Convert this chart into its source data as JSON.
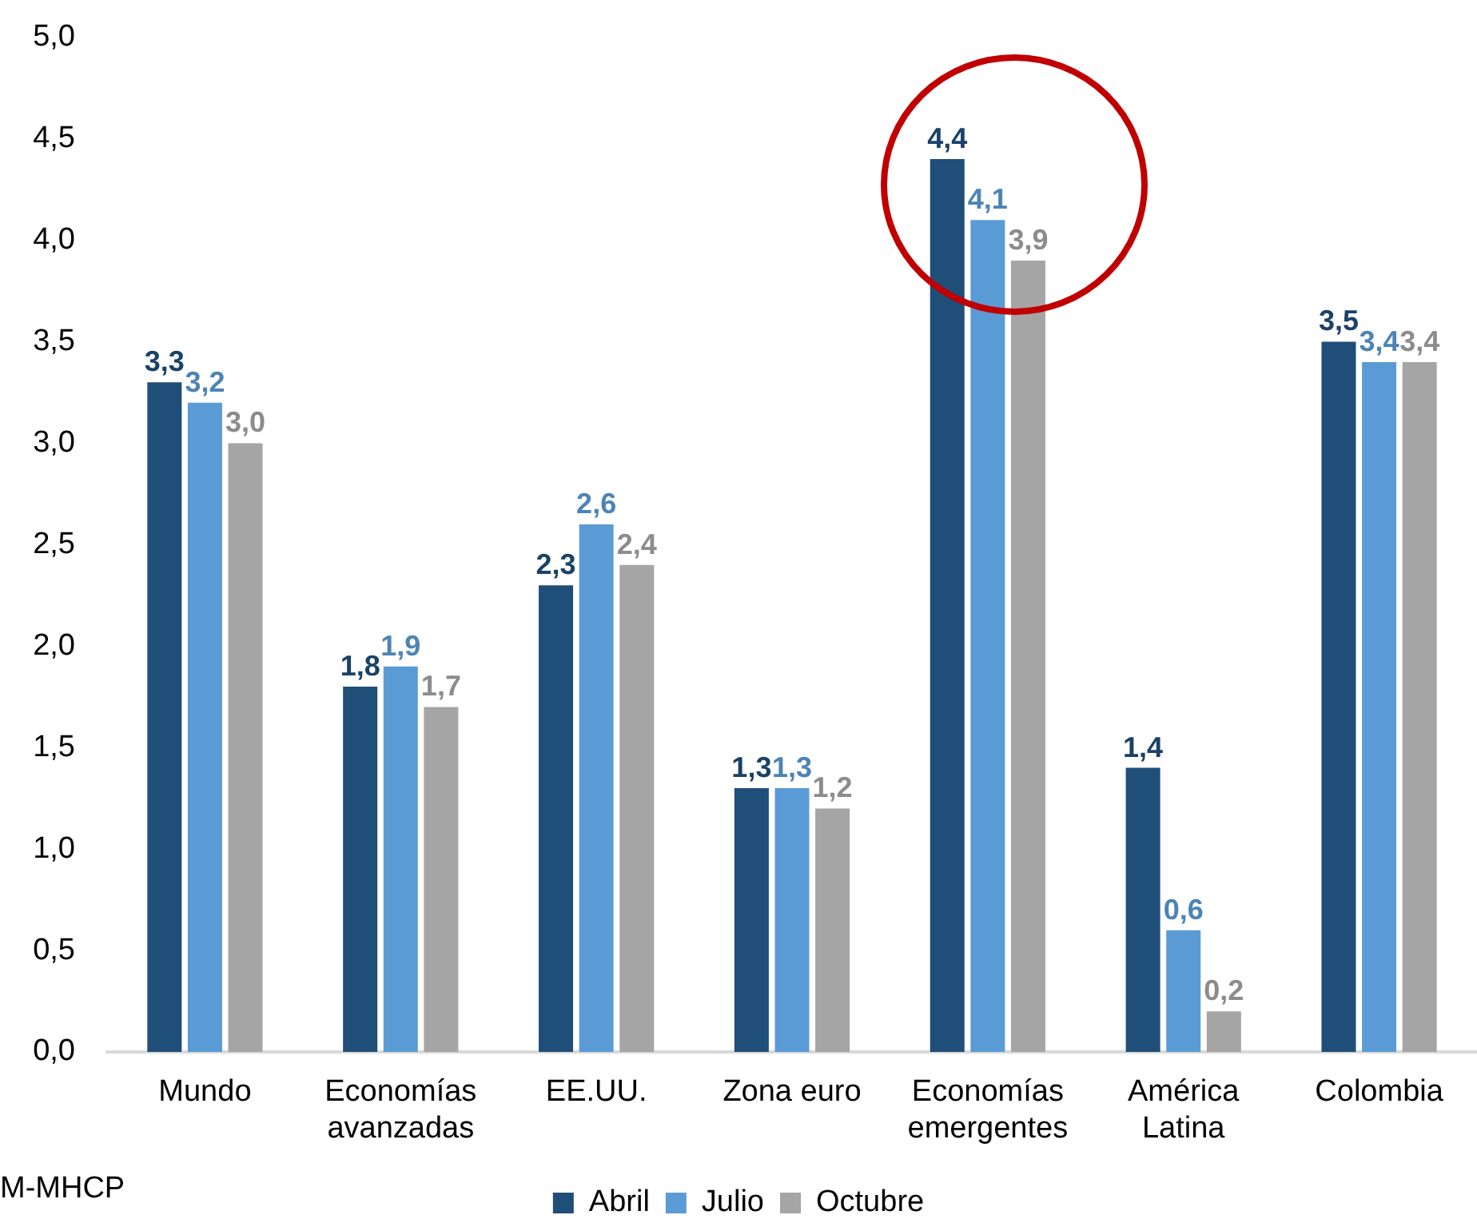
{
  "chart_data": {
    "type": "bar",
    "categories": [
      "Mundo",
      "Economías avanzadas",
      "EE.UU.",
      "Zona euro",
      "Economías emergentes",
      "América Latina",
      "Colombia"
    ],
    "series": [
      {
        "name": "Abril",
        "color": "#1f4e79",
        "values": [
          3.3,
          1.8,
          2.3,
          1.3,
          4.4,
          1.4,
          3.5
        ],
        "value_labels": [
          "3,3",
          "1,8",
          "2,3",
          "1,3",
          "4,4",
          "1,4",
          "3,5"
        ]
      },
      {
        "name": "Julio",
        "color": "#5b9bd5",
        "values": [
          3.2,
          1.9,
          2.6,
          1.3,
          4.1,
          0.6,
          3.4
        ],
        "value_labels": [
          "3,2",
          "1,9",
          "2,6",
          "1,3",
          "4,1",
          "0,6",
          "3,4"
        ]
      },
      {
        "name": "Octubre",
        "color": "#a5a5a5",
        "values": [
          3.0,
          1.7,
          2.4,
          1.2,
          3.9,
          0.2,
          3.4
        ],
        "value_labels": [
          "3,0",
          "1,7",
          "2,4",
          "1,2",
          "3,9",
          "0,2",
          "3,4"
        ]
      }
    ],
    "ylim": [
      0,
      5
    ],
    "yticks": [
      {
        "value": 0,
        "label": "0,0"
      },
      {
        "value": 0.5,
        "label": "0,5"
      },
      {
        "value": 1,
        "label": "1,0"
      },
      {
        "value": 1.5,
        "label": "1,5"
      },
      {
        "value": 2,
        "label": "2,0"
      },
      {
        "value": 2.5,
        "label": "2,5"
      },
      {
        "value": 3,
        "label": "3,0"
      },
      {
        "value": 3.5,
        "label": "3,5"
      },
      {
        "value": 4,
        "label": "4,0"
      },
      {
        "value": 4.5,
        "label": "4,5"
      },
      {
        "value": 5,
        "label": "5,0"
      }
    ],
    "grid": false,
    "legend": "bottom",
    "annotations": [
      "M-MHCP"
    ]
  }
}
